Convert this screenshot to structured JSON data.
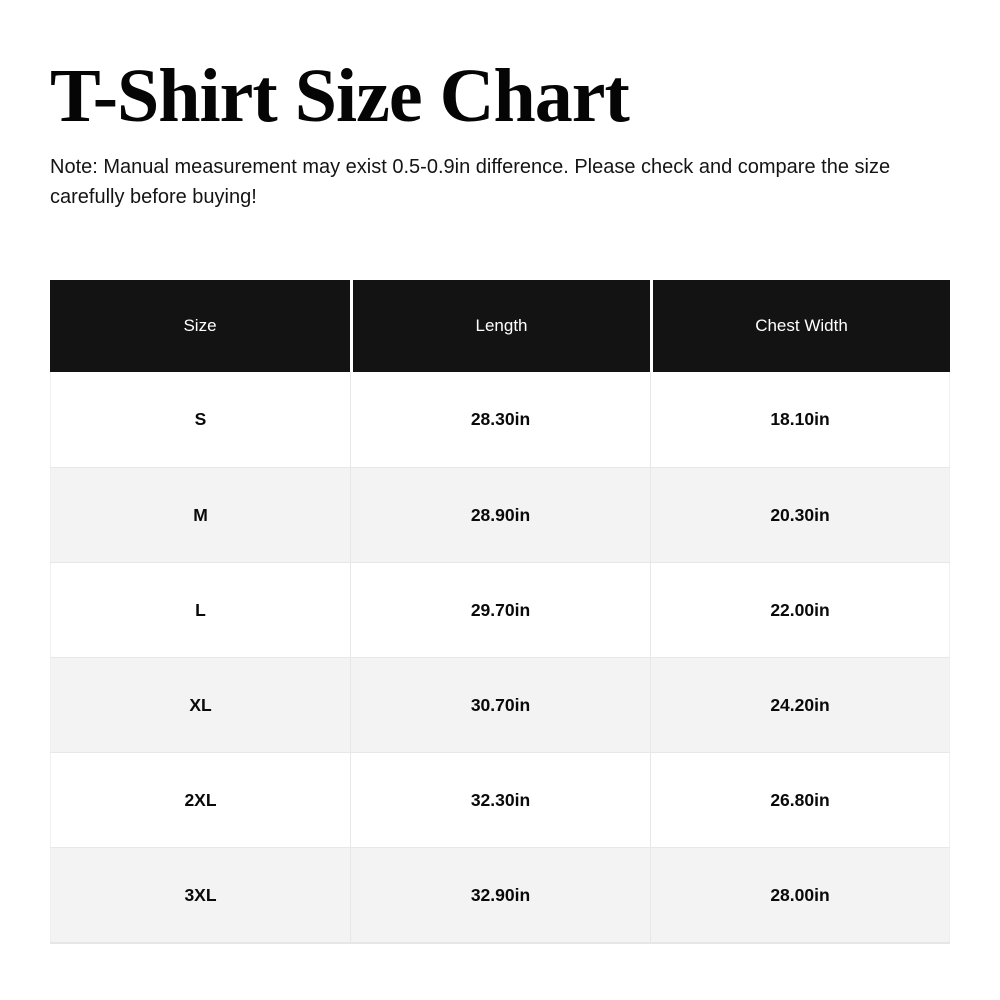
{
  "page": {
    "title": "T-Shirt Size Chart",
    "note": "Note: Manual measurement may exist 0.5-0.9in difference. Please check and compare the size carefully before buying!"
  },
  "colors": {
    "header_background": "#131313",
    "header_text": "#ffffff",
    "zebra_row": "#f3f3f3",
    "body_text": "#0a0a0a",
    "grid_line": "#e7e7e7"
  },
  "chart_data": {
    "type": "table",
    "title": "T-Shirt Size Chart",
    "columns": [
      "Size",
      "Length",
      "Chest Width"
    ],
    "unit": "in",
    "rows": [
      [
        "S",
        "28.30in",
        "18.10in"
      ],
      [
        "M",
        "28.90in",
        "20.30in"
      ],
      [
        "L",
        "29.70in",
        "22.00in"
      ],
      [
        "XL",
        "30.70in",
        "24.20in"
      ],
      [
        "2XL",
        "32.30in",
        "26.80in"
      ],
      [
        "3XL",
        "32.90in",
        "28.00in"
      ]
    ]
  }
}
